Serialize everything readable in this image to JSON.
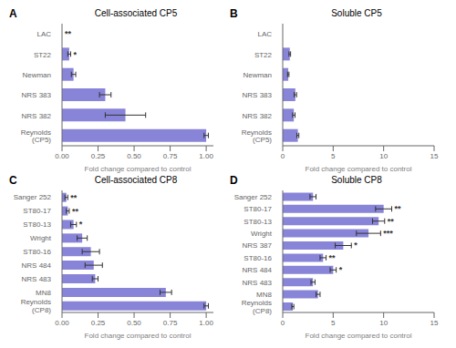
{
  "chart_data": [
    {
      "type": "bar",
      "orientation": "horizontal",
      "panel_label": "A",
      "title": "Cell-associated CP5",
      "categories": [
        "LAC",
        "ST22",
        "Newman",
        "NRS 383",
        "NRS 382",
        "Reynolds\n(CP5)"
      ],
      "values": [
        0.0,
        0.05,
        0.08,
        0.3,
        0.44,
        1.0
      ],
      "errors": [
        0.0,
        0.01,
        0.015,
        0.04,
        0.14,
        0.015
      ],
      "xlim": [
        0,
        1.05
      ],
      "xticks": [
        {
          "value": 0.0,
          "label": "0.00"
        },
        {
          "value": 0.25,
          "label": "0.25"
        },
        {
          "value": 0.5,
          "label": "0.50"
        },
        {
          "value": 0.75,
          "label": "0.75"
        },
        {
          "value": 1.0,
          "label": "1.00"
        }
      ],
      "x_label": "Fold change compared to control",
      "significance": [
        "**",
        "*",
        null,
        null,
        null,
        null
      ],
      "color": "#8884d8",
      "grid": false
    },
    {
      "type": "bar",
      "orientation": "horizontal",
      "panel_label": "B",
      "title": "Soluble CP5",
      "categories": [
        "LAC",
        "ST22",
        "Newman",
        "NRS 383",
        "NRS 382",
        "Reynolds\n(CP5)"
      ],
      "values": [
        0.0,
        0.7,
        0.55,
        1.25,
        1.1,
        1.5
      ],
      "errors": [
        0.0,
        0.08,
        0.07,
        0.12,
        0.12,
        0.1
      ],
      "xlim": [
        0,
        15
      ],
      "xticks": [
        0,
        5,
        10,
        15
      ],
      "x_label": "Fold change compared to control",
      "color": "#8884d8",
      "grid": false
    },
    {
      "type": "bar",
      "orientation": "horizontal",
      "panel_label": "C",
      "title": "Cell-associated CP8",
      "categories": [
        "Sanger 252",
        "ST80-17",
        "ST80-13",
        "Wright",
        "ST80-16",
        "NRS 484",
        "NRS 483",
        "MN8",
        "Reynolds\n(CP8)"
      ],
      "values": [
        0.03,
        0.04,
        0.08,
        0.14,
        0.2,
        0.22,
        0.23,
        0.72,
        1.0
      ],
      "errors": [
        0.01,
        0.01,
        0.02,
        0.035,
        0.06,
        0.06,
        0.02,
        0.04,
        0.015
      ],
      "xlim": [
        0,
        1.05
      ],
      "xticks": [
        {
          "value": 0.0,
          "label": "0.00"
        },
        {
          "value": 0.25,
          "label": "0.25"
        },
        {
          "value": 0.5,
          "label": "0.50"
        },
        {
          "value": 0.75,
          "label": "0.75"
        },
        {
          "value": 1.0,
          "label": "1.00"
        }
      ],
      "x_label": "Fold change compared to control",
      "significance": [
        "**",
        "**",
        "*",
        null,
        null,
        null,
        null,
        null,
        null
      ],
      "color": "#8884d8",
      "grid": false
    },
    {
      "type": "bar",
      "orientation": "horizontal",
      "panel_label": "D",
      "title": "Soluble CP8",
      "categories": [
        "Sanger 252",
        "ST80-17",
        "ST80-13",
        "Wright",
        "NRS 387",
        "ST80-16",
        "NRS 484",
        "NRS 483",
        "MN8",
        "Reynolds\n(CP8)"
      ],
      "values": [
        3.0,
        10.0,
        9.5,
        8.5,
        6.0,
        4.0,
        5.0,
        3.0,
        3.5,
        1.0
      ],
      "errors": [
        0.3,
        0.8,
        0.6,
        1.2,
        0.8,
        0.3,
        0.3,
        0.2,
        0.2,
        0.1
      ],
      "xlim": [
        0,
        15
      ],
      "xticks": [
        0,
        5,
        10,
        15
      ],
      "x_label": "Fold change compared to control",
      "significance": [
        null,
        "**",
        "**",
        "***",
        "*",
        "**",
        "*",
        null,
        null,
        null
      ],
      "color": "#8884d8",
      "grid": false
    }
  ]
}
